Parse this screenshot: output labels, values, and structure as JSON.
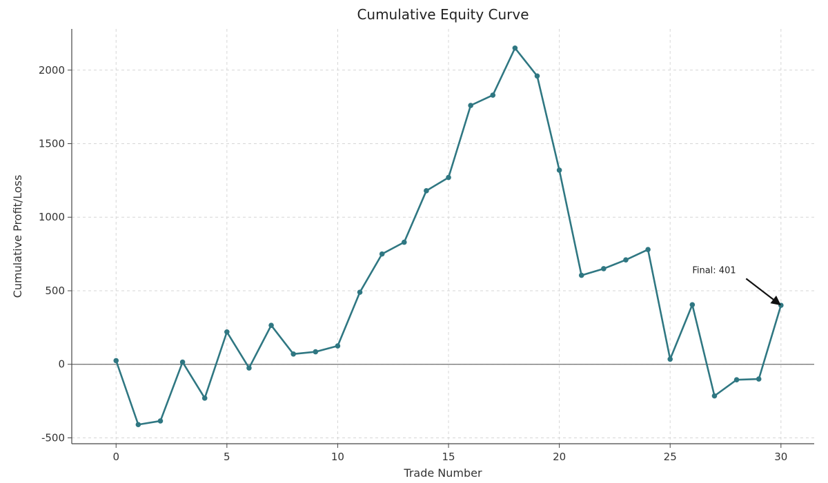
{
  "chart_data": {
    "type": "line",
    "title": "Cumulative Equity Curve",
    "xlabel": "Trade Number",
    "ylabel": "Cumulative Profit/Loss",
    "xlim": [
      -2,
      31.5
    ],
    "ylim": [
      -540,
      2280
    ],
    "x_ticks": [
      0,
      5,
      10,
      15,
      20,
      25,
      30
    ],
    "y_ticks": [
      -500,
      0,
      500,
      1000,
      1500,
      2000
    ],
    "grid": true,
    "zero_line": true,
    "colors": {
      "line": "#2f7782",
      "marker": "#2f7782",
      "grid": "#d6d6d6",
      "zero_line": "#7a7a7a",
      "axis": "#444444",
      "text": "#222222"
    },
    "series": [
      {
        "x": [
          0,
          1,
          2,
          3,
          4,
          5,
          6,
          7,
          8,
          9,
          10,
          11,
          12,
          13,
          14,
          15,
          16,
          17,
          18,
          19,
          20,
          21,
          22,
          23,
          24,
          25,
          26,
          27,
          28,
          29,
          30
        ],
        "values": [
          25,
          -410,
          -385,
          15,
          -230,
          220,
          -25,
          265,
          70,
          85,
          125,
          490,
          750,
          830,
          1180,
          1270,
          1760,
          1830,
          2150,
          1960,
          1320,
          605,
          650,
          710,
          780,
          35,
          405,
          -215,
          -105,
          -100,
          401
        ]
      }
    ],
    "annotation": {
      "text": "Final: 401",
      "x": 30,
      "y": 401,
      "text_x": 26,
      "text_y": 620
    }
  }
}
